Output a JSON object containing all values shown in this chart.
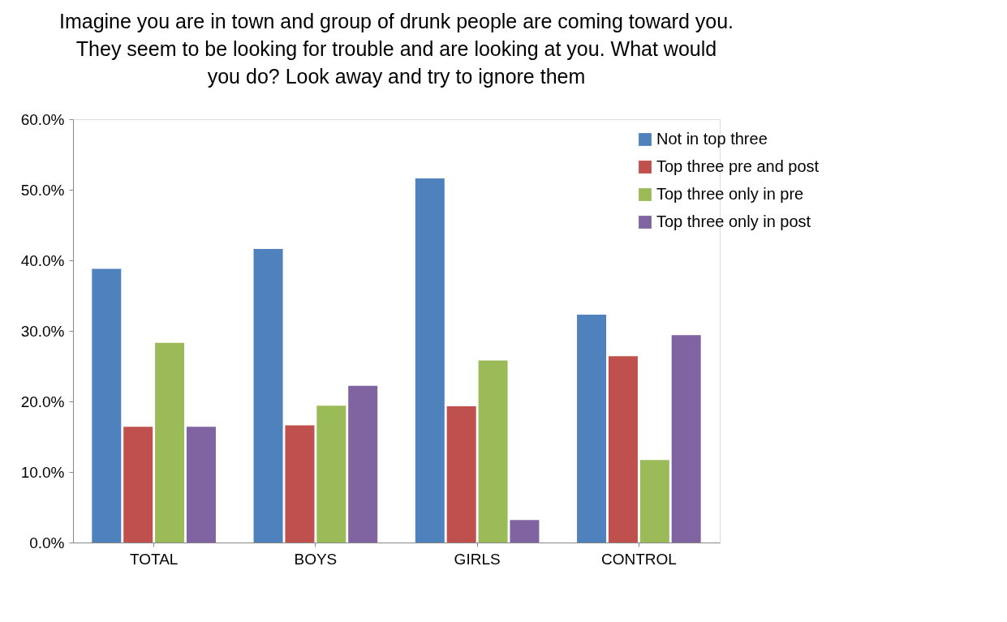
{
  "chart_data": {
    "type": "bar",
    "title": "Imagine you are in town and group of drunk people are coming toward you.  They seem to be looking for trouble and are looking at you.   What would you do?  Look away and try to ignore them",
    "categories": [
      "TOTAL",
      "BOYS",
      "GIRLS",
      "CONTROL"
    ],
    "series": [
      {
        "name": "Not in top three",
        "color": "#4f81bd",
        "values": [
          38.8,
          41.6,
          51.6,
          32.3
        ]
      },
      {
        "name": "Top three pre and post",
        "color": "#c0504d",
        "values": [
          16.4,
          16.6,
          19.3,
          26.4
        ]
      },
      {
        "name": "Top three only in pre",
        "color": "#9bbb59",
        "values": [
          28.3,
          19.4,
          25.8,
          11.7
        ]
      },
      {
        "name": "Top three only in post",
        "color": "#8064a2",
        "values": [
          16.4,
          22.2,
          3.2,
          29.4
        ]
      }
    ],
    "ylim": [
      0,
      60
    ],
    "yticks": [
      {
        "value": 0,
        "label": "0.0%"
      },
      {
        "value": 10,
        "label": "10.0%"
      },
      {
        "value": 20,
        "label": "20.0%"
      },
      {
        "value": 30,
        "label": "30.0%"
      },
      {
        "value": 40,
        "label": "40.0%"
      },
      {
        "value": 50,
        "label": "50.0%"
      },
      {
        "value": 60,
        "label": "60.0%"
      }
    ],
    "grid": false,
    "legend": "top right"
  }
}
